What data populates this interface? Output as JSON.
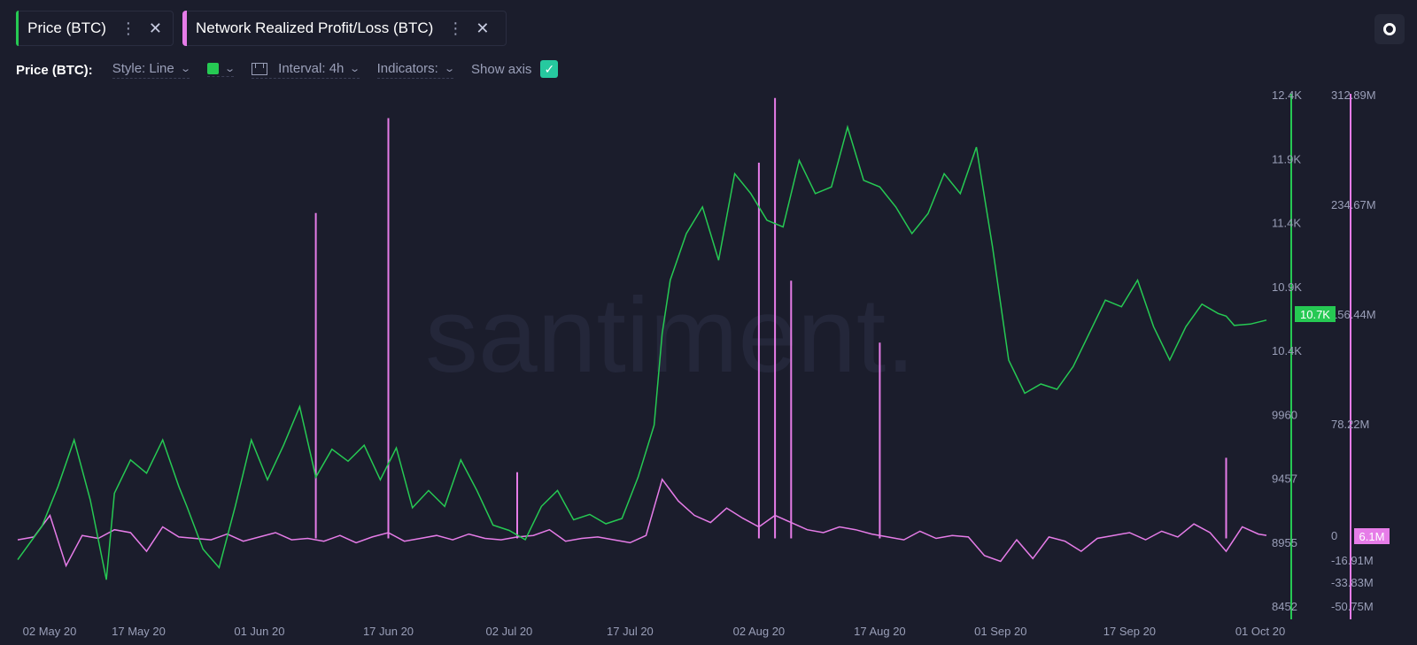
{
  "metrics": [
    {
      "label": "Price (BTC)",
      "color": "#26c953"
    },
    {
      "label": "Network Realized Profit/Loss (BTC)",
      "color": "#e67ce8"
    }
  ],
  "toolbar": {
    "title": "Price (BTC):",
    "style": "Style: Line",
    "interval": "Interval: 4h",
    "indicators": "Indicators:",
    "show_axis": "Show axis"
  },
  "watermark": "santiment.",
  "chart_data": {
    "type": "line",
    "x_tick_labels": [
      "02 May 20",
      "17 May 20",
      "01 Jun 20",
      "17 Jun 20",
      "02 Jul 20",
      "17 Jul 20",
      "02 Aug 20",
      "17 Aug 20",
      "01 Sep 20",
      "17 Sep 20",
      "01 Oct 20"
    ],
    "price_axis_labels": [
      "12.4K",
      "11.9K",
      "11.4K",
      "10.9K",
      "10.4K",
      "9960",
      "9457",
      "8955",
      "8452"
    ],
    "price_axis_range": [
      8452,
      12400
    ],
    "pl_axis_labels": [
      "312.89M",
      "234.67M",
      "156.44M",
      "78.22M",
      "0",
      "-16.91M",
      "-33.83M",
      "-50.75M"
    ],
    "price_current_label": "10.7K",
    "pl_current_label": "6.1M",
    "series": [
      {
        "name": "Price (BTC)",
        "color": "#26c953",
        "x_day": [
          0,
          3,
          5,
          7,
          9,
          11,
          12,
          14,
          16,
          18,
          20,
          21,
          23,
          25,
          27,
          29,
          31,
          33,
          35,
          37,
          39,
          41,
          43,
          45,
          47,
          49,
          51,
          53,
          55,
          57,
          59,
          61,
          63,
          65,
          67,
          69,
          71,
          73,
          75,
          77,
          79,
          80,
          81,
          83,
          85,
          87,
          89,
          91,
          93,
          95,
          97,
          99,
          101,
          103,
          105,
          107,
          109,
          111,
          113,
          115,
          117,
          119,
          121,
          123,
          125,
          127,
          129,
          131,
          133,
          135,
          137,
          139,
          141,
          143,
          145,
          147,
          149,
          150,
          151,
          153,
          155
        ],
        "values": [
          8900,
          9150,
          9450,
          9800,
          9350,
          8750,
          9400,
          9650,
          9550,
          9800,
          9450,
          9300,
          8980,
          8840,
          9300,
          9800,
          9500,
          9760,
          10050,
          9520,
          9730,
          9640,
          9760,
          9500,
          9740,
          9290,
          9420,
          9300,
          9650,
          9420,
          9160,
          9120,
          9050,
          9300,
          9420,
          9200,
          9240,
          9170,
          9210,
          9520,
          9910,
          10600,
          11000,
          11350,
          11550,
          11150,
          11800,
          11650,
          11450,
          11400,
          11900,
          11650,
          11700,
          12150,
          11750,
          11700,
          11550,
          11350,
          11500,
          11800,
          11650,
          12000,
          11250,
          10400,
          10150,
          10220,
          10180,
          10350,
          10600,
          10850,
          10800,
          11000,
          10650,
          10400,
          10650,
          10820,
          10750,
          10730,
          10660,
          10670,
          10700
        ]
      },
      {
        "name": "Network Realized Profit/Loss (BTC)",
        "color": "#e67ce8",
        "x_day": [
          0,
          2,
          4,
          6,
          8,
          10,
          12,
          14,
          16,
          18,
          20,
          22,
          24,
          26,
          28,
          30,
          32,
          34,
          36,
          38,
          40,
          42,
          44,
          46,
          48,
          50,
          52,
          54,
          56,
          58,
          60,
          62,
          64,
          66,
          68,
          70,
          72,
          74,
          76,
          78,
          80,
          82,
          84,
          86,
          88,
          90,
          92,
          94,
          96,
          98,
          100,
          102,
          104,
          106,
          108,
          110,
          112,
          114,
          116,
          118,
          120,
          122,
          124,
          126,
          128,
          130,
          132,
          134,
          136,
          138,
          140,
          142,
          144,
          146,
          148,
          150,
          152,
          154,
          155
        ],
        "values": [
          3,
          5,
          20,
          -15,
          6,
          4,
          10,
          8,
          -5,
          12,
          5,
          4,
          3,
          7,
          2,
          5,
          8,
          3,
          4,
          2,
          6,
          1,
          5,
          8,
          2,
          4,
          6,
          3,
          7,
          4,
          3,
          5,
          6,
          10,
          2,
          4,
          5,
          3,
          1,
          6,
          45,
          30,
          20,
          15,
          25,
          18,
          12,
          20,
          15,
          10,
          8,
          12,
          10,
          7,
          5,
          3,
          9,
          4,
          6,
          5,
          -8,
          -12,
          3,
          -10,
          5,
          2,
          -5,
          4,
          6,
          8,
          3,
          9,
          5,
          14,
          8,
          -5,
          12,
          7,
          6.1
        ],
        "spikes": [
          {
            "x_day": 37,
            "value": 230
          },
          {
            "x_day": 46,
            "value": 296
          },
          {
            "x_day": 62,
            "value": 50
          },
          {
            "x_day": 92,
            "value": 265
          },
          {
            "x_day": 94,
            "value": 310
          },
          {
            "x_day": 96,
            "value": 183
          },
          {
            "x_day": 107,
            "value": 140
          },
          {
            "x_day": 150,
            "value": 60
          }
        ]
      }
    ]
  }
}
